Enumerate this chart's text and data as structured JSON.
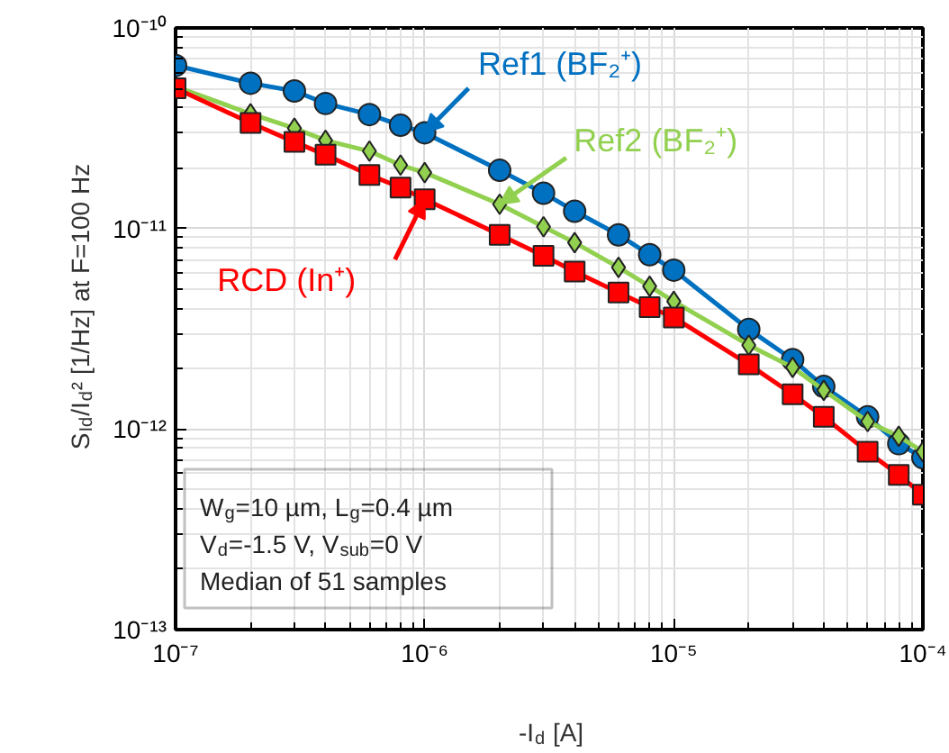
{
  "chart_data": {
    "type": "line",
    "xlabel": "-I$_{d}$ [A]",
    "ylabel": "S$_{Id}$/I$_{d}$² [1/Hz] at F=100 Hz",
    "x": [
      1e-07,
      2e-07,
      3e-07,
      4e-07,
      6e-07,
      8e-07,
      1e-06,
      2e-06,
      3e-06,
      4e-06,
      6e-06,
      8e-06,
      1e-05,
      2e-05,
      3e-05,
      4e-05,
      6e-05,
      8e-05,
      0.0001
    ],
    "series": [
      {
        "name": "Ref1 (BF₂⁺)",
        "color": "#0070c0",
        "marker": "circle",
        "values": [
          6.5e-11,
          5.3e-11,
          4.85e-11,
          4.2e-11,
          3.7e-11,
          3.27e-11,
          3e-11,
          1.95e-11,
          1.5e-11,
          1.22e-11,
          9.3e-12,
          7.4e-12,
          6.2e-12,
          3.14e-12,
          2.22e-12,
          1.63e-12,
          1.15e-12,
          8.45e-13,
          7.2e-13
        ]
      },
      {
        "name": "Ref2 (BF₂⁺)",
        "color": "#92d050",
        "marker": "diamond",
        "values": [
          5.1e-11,
          3.73e-11,
          3.16e-11,
          2.75e-11,
          2.43e-11,
          2.07e-11,
          1.9e-11,
          1.32e-11,
          1.02e-11,
          8.5e-12,
          6.4e-12,
          5.15e-12,
          4.33e-12,
          2.62e-12,
          2.03e-12,
          1.56e-12,
          1.09e-12,
          9.2e-13,
          7.7e-13
        ]
      },
      {
        "name": "RCD (In⁺)",
        "color": "#ff0000",
        "marker": "square",
        "values": [
          5e-11,
          3.36e-11,
          2.7e-11,
          2.33e-11,
          1.85e-11,
          1.6e-11,
          1.4e-11,
          9.3e-12,
          7.3e-12,
          6.1e-12,
          4.8e-12,
          4.05e-12,
          3.6e-12,
          2.1e-12,
          1.49e-12,
          1.15e-12,
          7.7e-13,
          5.9e-13,
          4.7e-13
        ]
      }
    ],
    "annotations": [
      "W$_{g}$=10 µm, L$_{g}$=0.4 µm\nV$_{d}$=-1.5 V, V$_{sub}$=0 V\nMedian of 51 samples"
    ],
    "log": "xy",
    "xlim": [
      1e-07,
      0.0001
    ],
    "ylim": [
      1e-13,
      1e-10
    ],
    "xticks": [
      {
        "value": 1e-07,
        "label": "10⁻⁷"
      },
      {
        "value": 1e-06,
        "label": "10⁻⁶"
      },
      {
        "value": 1e-05,
        "label": "10⁻⁵"
      },
      {
        "value": 0.0001,
        "label": "10⁻⁴"
      }
    ],
    "yticks": [
      {
        "value": 1e-13,
        "label": "10⁻¹³"
      },
      {
        "value": 1e-12,
        "label": "10⁻¹²"
      },
      {
        "value": 1e-11,
        "label": "10⁻¹¹"
      },
      {
        "value": 1e-10,
        "label": "10⁻¹⁰"
      }
    ],
    "grid": true,
    "line_style": "solid"
  }
}
